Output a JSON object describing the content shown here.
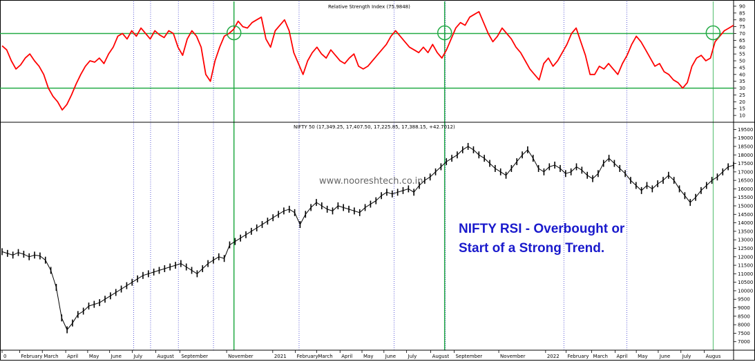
{
  "chart_data": [
    {
      "type": "line",
      "title": "Relative Strength Index (75.9848)",
      "ylim": [
        5,
        92
      ],
      "yticks": [
        10,
        15,
        20,
        25,
        30,
        35,
        40,
        45,
        50,
        55,
        60,
        65,
        70,
        75,
        80,
        85,
        90
      ],
      "reference_lines": [
        30,
        70
      ],
      "series": [
        {
          "color": "#ff0000",
          "values": [
            61,
            58,
            50,
            44,
            47,
            52,
            55,
            50,
            46,
            40,
            30,
            24,
            20,
            14,
            18,
            25,
            33,
            40,
            46,
            50,
            49,
            52,
            48,
            55,
            60,
            68,
            70,
            66,
            72,
            68,
            74,
            70,
            66,
            72,
            69,
            67,
            72,
            70,
            60,
            54,
            66,
            72,
            68,
            60,
            40,
            35,
            50,
            60,
            68,
            70,
            73,
            79,
            75,
            74,
            78,
            80,
            82,
            66,
            60,
            72,
            76,
            80,
            72,
            56,
            48,
            40,
            50,
            56,
            60,
            55,
            52,
            58,
            54,
            50,
            48,
            52,
            55,
            46,
            44,
            46,
            50,
            54,
            58,
            62,
            68,
            72,
            68,
            64,
            60,
            58,
            56,
            60,
            56,
            62,
            56,
            52,
            58,
            66,
            74,
            78,
            76,
            82,
            84,
            86,
            78,
            70,
            64,
            68,
            74,
            70,
            66,
            60,
            56,
            50,
            44,
            40,
            36,
            48,
            52,
            46,
            50,
            56,
            62,
            70,
            74,
            64,
            54,
            40,
            40,
            46,
            44,
            48,
            44,
            40,
            48,
            54,
            62,
            68,
            64,
            58,
            52,
            46,
            48,
            42,
            40,
            36,
            34,
            30,
            34,
            46,
            52,
            54,
            50,
            52,
            64,
            68,
            72,
            74,
            76
          ]
        }
      ]
    },
    {
      "type": "line",
      "title": "NIFTY 50 (17,349.25, 17,407.50, 17,225.85, 17,388.15, +42.7012)",
      "ylim": [
        6500,
        19800
      ],
      "yticks": [
        7000,
        7500,
        8000,
        8500,
        9000,
        9500,
        10000,
        10500,
        11000,
        11500,
        12000,
        12500,
        13000,
        13500,
        14000,
        14500,
        15000,
        15500,
        16000,
        16500,
        17000,
        17500,
        18000,
        18500,
        19000,
        19500
      ],
      "series": [
        {
          "color": "#000000",
          "values": [
            12300,
            12200,
            12100,
            12250,
            12150,
            12000,
            12100,
            12050,
            11800,
            11200,
            10200,
            8400,
            7700,
            8100,
            8600,
            8800,
            9100,
            9200,
            9300,
            9500,
            9700,
            9900,
            10100,
            10300,
            10500,
            10700,
            10900,
            11000,
            11100,
            11200,
            11300,
            11400,
            11500,
            11600,
            11400,
            11200,
            11000,
            11300,
            11600,
            11800,
            12000,
            11900,
            12700,
            12900,
            13100,
            13300,
            13500,
            13700,
            13900,
            14100,
            14300,
            14500,
            14700,
            14800,
            14600,
            13900,
            14500,
            14900,
            15200,
            15000,
            14800,
            14700,
            15000,
            14900,
            14800,
            14700,
            14600,
            14900,
            15100,
            15300,
            15600,
            15800,
            15700,
            15800,
            15900,
            16000,
            15800,
            16200,
            16500,
            16700,
            17000,
            17300,
            17600,
            17800,
            18000,
            18300,
            18500,
            18300,
            18000,
            17800,
            17500,
            17200,
            17000,
            16800,
            17200,
            17600,
            18000,
            18300,
            17800,
            17200,
            17000,
            17300,
            17400,
            17200,
            16900,
            17000,
            17300,
            17100,
            16800,
            16600,
            16900,
            17500,
            17800,
            17500,
            17200,
            16900,
            16500,
            16200,
            15900,
            16200,
            16000,
            16300,
            16500,
            16800,
            16500,
            16000,
            15600,
            15200,
            15500,
            15900,
            16200,
            16500,
            16700,
            17000,
            17300,
            17388
          ]
        }
      ]
    }
  ],
  "x_axis": {
    "labels": [
      {
        "text": "0",
        "pos": 0
      },
      {
        "text": "February",
        "pos": 0.024
      },
      {
        "text": "March",
        "pos": 0.055
      },
      {
        "text": "April",
        "pos": 0.087
      },
      {
        "text": "May",
        "pos": 0.117
      },
      {
        "text": "June",
        "pos": 0.147
      },
      {
        "text": "July",
        "pos": 0.178
      },
      {
        "text": "August",
        "pos": 0.21
      },
      {
        "text": "September",
        "pos": 0.243
      },
      {
        "text": "November",
        "pos": 0.307
      },
      {
        "text": "2021",
        "pos": 0.37
      },
      {
        "text": "February",
        "pos": 0.401
      },
      {
        "text": "March",
        "pos": 0.43
      },
      {
        "text": "April",
        "pos": 0.462
      },
      {
        "text": "May",
        "pos": 0.492
      },
      {
        "text": "June",
        "pos": 0.522
      },
      {
        "text": "July",
        "pos": 0.553
      },
      {
        "text": "August",
        "pos": 0.586
      },
      {
        "text": "September",
        "pos": 0.618
      },
      {
        "text": "November",
        "pos": 0.679
      },
      {
        "text": "2022",
        "pos": 0.743
      },
      {
        "text": "February",
        "pos": 0.771
      },
      {
        "text": "March",
        "pos": 0.806
      },
      {
        "text": "April",
        "pos": 0.838
      },
      {
        "text": "May",
        "pos": 0.867
      },
      {
        "text": "June",
        "pos": 0.897
      },
      {
        "text": "July",
        "pos": 0.928
      },
      {
        "text": "Augus",
        "pos": 0.96
      }
    ]
  },
  "watermark": "www.nooreshtech.co.in",
  "annotation": {
    "line1": "NIFTY RSI - Overbought or",
    "line2": "Start of a Strong Trend."
  },
  "colors": {
    "rsi_line": "#ff0000",
    "reference_line": "#22aa44",
    "vertical_marker": "#22aa44",
    "dotted_grid": "#3333cc",
    "annotation": "#1a1acc",
    "price": "#000000"
  }
}
